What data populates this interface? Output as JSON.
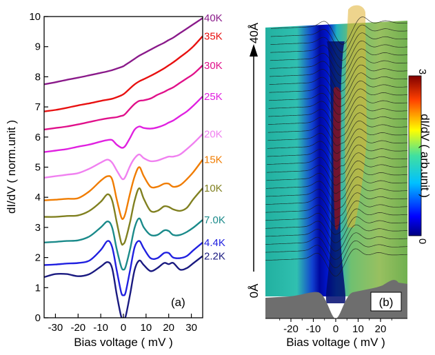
{
  "chart_data": [
    {
      "panel": "(a)",
      "type": "line",
      "xlabel": "Bias voltage ( mV )",
      "ylabel": "dI/dV ( norm.unit )",
      "xlim": [
        -35,
        35
      ],
      "ylim": [
        0,
        10
      ],
      "xticks": [
        -30,
        -20,
        -10,
        0,
        10,
        20,
        30
      ],
      "yticks": [
        0,
        1,
        2,
        3,
        4,
        5,
        6,
        7,
        8,
        9,
        10
      ],
      "grid": false,
      "series": [
        {
          "name": "2.2K",
          "color": "#1a1a80",
          "points": [
            [
              -35,
              1.35
            ],
            [
              -30,
              1.45
            ],
            [
              -25,
              1.45
            ],
            [
              -20,
              1.38
            ],
            [
              -15,
              1.45
            ],
            [
              -10,
              1.7
            ],
            [
              -7,
              1.85
            ],
            [
              -5,
              1.65
            ],
            [
              -3,
              0.8
            ],
            [
              -1,
              0.05
            ],
            [
              0,
              0
            ],
            [
              1,
              0.05
            ],
            [
              3,
              0.8
            ],
            [
              5,
              1.6
            ],
            [
              7,
              1.9
            ],
            [
              9,
              1.75
            ],
            [
              12,
              1.55
            ],
            [
              15,
              1.65
            ],
            [
              18,
              1.82
            ],
            [
              20,
              1.78
            ],
            [
              22,
              1.82
            ],
            [
              25,
              1.6
            ],
            [
              28,
              1.65
            ],
            [
              31,
              1.82
            ],
            [
              35,
              2.05
            ]
          ]
        },
        {
          "name": "4.4K",
          "color": "#2020e0",
          "points": [
            [
              -35,
              1.75
            ],
            [
              -30,
              1.77
            ],
            [
              -25,
              1.8
            ],
            [
              -20,
              1.82
            ],
            [
              -15,
              1.9
            ],
            [
              -10,
              2.25
            ],
            [
              -7,
              2.55
            ],
            [
              -5,
              2.35
            ],
            [
              -3,
              1.6
            ],
            [
              -1,
              0.85
            ],
            [
              0,
              0.75
            ],
            [
              1,
              0.85
            ],
            [
              3,
              1.6
            ],
            [
              5,
              2.35
            ],
            [
              7,
              2.55
            ],
            [
              9,
              2.3
            ],
            [
              12,
              1.98
            ],
            [
              15,
              1.98
            ],
            [
              18,
              2.15
            ],
            [
              20,
              2.15
            ],
            [
              22,
              2.0
            ],
            [
              25,
              1.98
            ],
            [
              28,
              2.05
            ],
            [
              31,
              2.25
            ],
            [
              35,
              2.5
            ]
          ]
        },
        {
          "name": "7.0K",
          "color": "#1a8a8a",
          "points": [
            [
              -35,
              2.5
            ],
            [
              -30,
              2.52
            ],
            [
              -25,
              2.55
            ],
            [
              -20,
              2.57
            ],
            [
              -15,
              2.7
            ],
            [
              -10,
              3.0
            ],
            [
              -7,
              3.2
            ],
            [
              -5,
              3.0
            ],
            [
              -3,
              2.3
            ],
            [
              -1,
              1.7
            ],
            [
              0,
              1.6
            ],
            [
              1,
              1.7
            ],
            [
              3,
              2.3
            ],
            [
              5,
              3.0
            ],
            [
              7,
              3.3
            ],
            [
              9,
              3.0
            ],
            [
              12,
              2.75
            ],
            [
              15,
              2.75
            ],
            [
              18,
              2.9
            ],
            [
              20,
              2.88
            ],
            [
              22,
              2.75
            ],
            [
              25,
              2.75
            ],
            [
              28,
              2.85
            ],
            [
              31,
              3.0
            ],
            [
              35,
              3.25
            ]
          ]
        },
        {
          "name": "10K",
          "color": "#808020",
          "points": [
            [
              -35,
              3.35
            ],
            [
              -30,
              3.35
            ],
            [
              -25,
              3.38
            ],
            [
              -20,
              3.4
            ],
            [
              -15,
              3.55
            ],
            [
              -10,
              3.85
            ],
            [
              -7,
              4.1
            ],
            [
              -5,
              3.9
            ],
            [
              -3,
              3.2
            ],
            [
              -1,
              2.5
            ],
            [
              0,
              2.45
            ],
            [
              1,
              2.6
            ],
            [
              3,
              3.2
            ],
            [
              5,
              3.9
            ],
            [
              7,
              4.3
            ],
            [
              9,
              3.95
            ],
            [
              12,
              3.55
            ],
            [
              15,
              3.55
            ],
            [
              18,
              3.7
            ],
            [
              20,
              3.68
            ],
            [
              22,
              3.6
            ],
            [
              25,
              3.55
            ],
            [
              28,
              3.65
            ],
            [
              31,
              3.95
            ],
            [
              35,
              4.3
            ]
          ]
        },
        {
          "name": "15K",
          "color": "#f07c00",
          "points": [
            [
              -35,
              3.9
            ],
            [
              -30,
              3.92
            ],
            [
              -25,
              3.95
            ],
            [
              -20,
              3.97
            ],
            [
              -15,
              4.2
            ],
            [
              -10,
              4.55
            ],
            [
              -7,
              4.7
            ],
            [
              -5,
              4.6
            ],
            [
              -3,
              3.95
            ],
            [
              -1,
              3.35
            ],
            [
              0,
              3.3
            ],
            [
              1,
              3.5
            ],
            [
              3,
              4.15
            ],
            [
              5,
              4.7
            ],
            [
              7,
              5.0
            ],
            [
              9,
              4.7
            ],
            [
              12,
              4.35
            ],
            [
              15,
              4.35
            ],
            [
              18,
              4.45
            ],
            [
              20,
              4.45
            ],
            [
              22,
              4.35
            ],
            [
              25,
              4.4
            ],
            [
              28,
              4.6
            ],
            [
              31,
              4.85
            ],
            [
              35,
              5.25
            ]
          ]
        },
        {
          "name": "20K",
          "color": "#f080f0",
          "points": [
            [
              -35,
              4.65
            ],
            [
              -30,
              4.7
            ],
            [
              -25,
              4.75
            ],
            [
              -20,
              4.8
            ],
            [
              -15,
              4.95
            ],
            [
              -10,
              5.15
            ],
            [
              -7,
              5.25
            ],
            [
              -5,
              5.15
            ],
            [
              -3,
              4.9
            ],
            [
              -1,
              4.65
            ],
            [
              0,
              4.6
            ],
            [
              1,
              4.7
            ],
            [
              3,
              5.05
            ],
            [
              5,
              5.3
            ],
            [
              7,
              5.42
            ],
            [
              9,
              5.3
            ],
            [
              12,
              5.2
            ],
            [
              15,
              5.22
            ],
            [
              18,
              5.3
            ],
            [
              20,
              5.35
            ],
            [
              22,
              5.35
            ],
            [
              25,
              5.42
            ],
            [
              28,
              5.6
            ],
            [
              31,
              5.8
            ],
            [
              35,
              6.1
            ]
          ]
        },
        {
          "name": "25K",
          "color": "#e020e0",
          "points": [
            [
              -35,
              5.5
            ],
            [
              -30,
              5.55
            ],
            [
              -25,
              5.6
            ],
            [
              -20,
              5.68
            ],
            [
              -15,
              5.75
            ],
            [
              -10,
              5.85
            ],
            [
              -7,
              5.9
            ],
            [
              -5,
              5.9
            ],
            [
              -3,
              5.75
            ],
            [
              -1,
              5.65
            ],
            [
              0,
              5.65
            ],
            [
              1,
              5.72
            ],
            [
              3,
              5.98
            ],
            [
              5,
              6.25
            ],
            [
              7,
              6.35
            ],
            [
              9,
              6.3
            ],
            [
              12,
              6.28
            ],
            [
              15,
              6.32
            ],
            [
              18,
              6.4
            ],
            [
              20,
              6.48
            ],
            [
              22,
              6.55
            ],
            [
              25,
              6.7
            ],
            [
              28,
              6.85
            ],
            [
              31,
              7.05
            ],
            [
              35,
              7.35
            ]
          ]
        },
        {
          "name": "30K",
          "color": "#e0108a",
          "points": [
            [
              -35,
              6.25
            ],
            [
              -30,
              6.3
            ],
            [
              -25,
              6.35
            ],
            [
              -20,
              6.42
            ],
            [
              -15,
              6.5
            ],
            [
              -10,
              6.58
            ],
            [
              -7,
              6.62
            ],
            [
              -5,
              6.64
            ],
            [
              -3,
              6.66
            ],
            [
              -1,
              6.7
            ],
            [
              0,
              6.72
            ],
            [
              1,
              6.78
            ],
            [
              3,
              6.95
            ],
            [
              5,
              7.1
            ],
            [
              7,
              7.2
            ],
            [
              9,
              7.22
            ],
            [
              12,
              7.28
            ],
            [
              15,
              7.4
            ],
            [
              18,
              7.5
            ],
            [
              20,
              7.58
            ],
            [
              22,
              7.65
            ],
            [
              25,
              7.8
            ],
            [
              28,
              7.95
            ],
            [
              31,
              8.1
            ],
            [
              35,
              8.38
            ]
          ]
        },
        {
          "name": "35K",
          "color": "#e81010",
          "points": [
            [
              -35,
              6.85
            ],
            [
              -30,
              6.9
            ],
            [
              -25,
              6.97
            ],
            [
              -20,
              7.05
            ],
            [
              -15,
              7.12
            ],
            [
              -10,
              7.2
            ],
            [
              -7,
              7.24
            ],
            [
              -5,
              7.27
            ],
            [
              -3,
              7.32
            ],
            [
              -1,
              7.38
            ],
            [
              0,
              7.42
            ],
            [
              1,
              7.48
            ],
            [
              3,
              7.62
            ],
            [
              5,
              7.75
            ],
            [
              7,
              7.85
            ],
            [
              9,
              7.92
            ],
            [
              12,
              8.03
            ],
            [
              15,
              8.15
            ],
            [
              18,
              8.28
            ],
            [
              20,
              8.38
            ],
            [
              22,
              8.48
            ],
            [
              25,
              8.65
            ],
            [
              28,
              8.82
            ],
            [
              31,
              9.02
            ],
            [
              35,
              9.35
            ]
          ]
        },
        {
          "name": "40K",
          "color": "#8a1a8a",
          "points": [
            [
              -35,
              7.75
            ],
            [
              -30,
              7.82
            ],
            [
              -25,
              7.9
            ],
            [
              -20,
              7.97
            ],
            [
              -15,
              8.05
            ],
            [
              -10,
              8.13
            ],
            [
              -7,
              8.18
            ],
            [
              -5,
              8.22
            ],
            [
              -3,
              8.27
            ],
            [
              -1,
              8.32
            ],
            [
              0,
              8.35
            ],
            [
              1,
              8.4
            ],
            [
              3,
              8.5
            ],
            [
              5,
              8.6
            ],
            [
              7,
              8.7
            ],
            [
              9,
              8.78
            ],
            [
              12,
              8.9
            ],
            [
              15,
              9.02
            ],
            [
              18,
              9.13
            ],
            [
              20,
              9.22
            ],
            [
              22,
              9.3
            ],
            [
              25,
              9.45
            ],
            [
              28,
              9.6
            ],
            [
              31,
              9.75
            ],
            [
              35,
              9.95
            ]
          ]
        }
      ]
    },
    {
      "panel": "(b)",
      "type": "waterfall-surface",
      "xlabel": "Bias voltage ( mV )",
      "xlim": [
        -30,
        30
      ],
      "xticks": [
        -20,
        -10,
        0,
        10,
        20
      ],
      "spatial_axis": {
        "start_label": "0Å",
        "end_label": "40Å"
      },
      "colorbar": {
        "label": "dI/dV ( arb.unit )",
        "min": 0,
        "max": 3,
        "tick_labels": [
          "0",
          "3"
        ]
      },
      "traces": 30
    }
  ]
}
